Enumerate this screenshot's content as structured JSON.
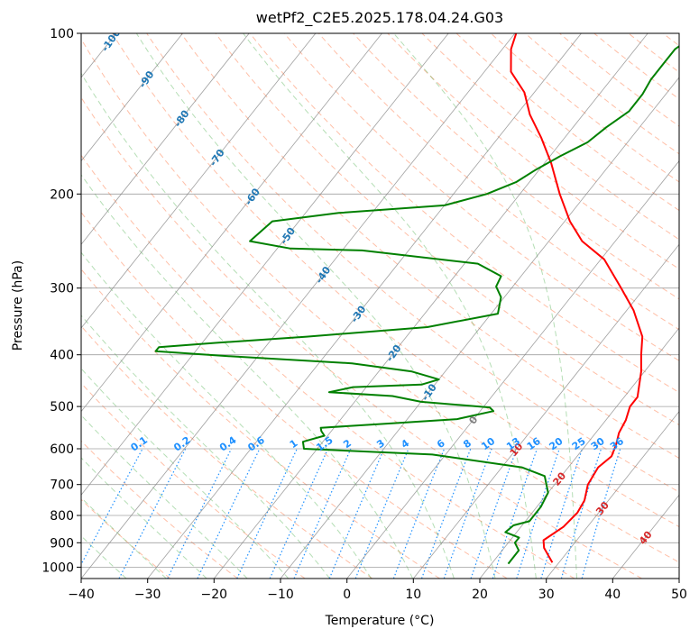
{
  "chart_data": {
    "type": "line",
    "title": "wetPf2_C2E5.2025.178.04.24.G03",
    "xlabel": "Temperature (°C)",
    "ylabel": "Pressure (hPa)",
    "xlim": [
      -40,
      50
    ],
    "ylim": [
      1050,
      100
    ],
    "y_scale": "log",
    "grid": true,
    "x_ticks": [
      "−40",
      "−30",
      "−20",
      "−10",
      "0",
      "10",
      "20",
      "30",
      "40",
      "50"
    ],
    "y_ticks": [
      "100",
      "200",
      "300",
      "400",
      "500",
      "600",
      "700",
      "800",
      "900",
      "1000"
    ],
    "isotherm_labels": [
      "-100",
      "-90",
      "-80",
      "-70",
      "-60",
      "-50",
      "-40",
      "-30",
      "-20",
      "-10",
      "0",
      "10",
      "20",
      "30",
      "40"
    ],
    "mixing_ratio_labels": [
      "0.1",
      "0.2",
      "0.4",
      "0.6",
      "1",
      "1.5",
      "2",
      "3",
      "4",
      "6",
      "8",
      "10",
      "13",
      "16",
      "20",
      "25",
      "30",
      "36"
    ],
    "colors": {
      "temperature": "#ff0000",
      "dewpoint": "#008000",
      "isotherm_text_cold": "#1f77b4",
      "isotherm_text_zero": "#808080",
      "isotherm_text_warm": "#d62728",
      "mixing_ratio": "#1e90ff",
      "dry_adiabat": "#ff7f50",
      "moist_adiabat": "#2ca02c",
      "isotherm_line": "#808080"
    },
    "series": [
      {
        "name": "Temperature",
        "points": [
          [
            29.0,
            980
          ],
          [
            26.0,
            920
          ],
          [
            25.0,
            890
          ],
          [
            26.4,
            840
          ],
          [
            26.8,
            790
          ],
          [
            26.4,
            750
          ],
          [
            25.0,
            700
          ],
          [
            24.5,
            650
          ],
          [
            25.2,
            620
          ],
          [
            24.5,
            590
          ],
          [
            23.5,
            560
          ],
          [
            23.0,
            530
          ],
          [
            22.0,
            500
          ],
          [
            22.0,
            480
          ],
          [
            19.5,
            430
          ],
          [
            17.5,
            400
          ],
          [
            15.5,
            370
          ],
          [
            11.0,
            330
          ],
          [
            6.5,
            300
          ],
          [
            0.5,
            265
          ],
          [
            -5.0,
            245
          ],
          [
            -9.2,
            225
          ],
          [
            -14.0,
            200
          ],
          [
            -19.0,
            175
          ],
          [
            -23.5,
            157
          ],
          [
            -28.0,
            142
          ],
          [
            -31.5,
            129
          ],
          [
            -36.0,
            118
          ],
          [
            -38.7,
            107
          ],
          [
            -39.8,
            100
          ]
        ]
      },
      {
        "name": "Dewpoint",
        "points": [
          [
            22.5,
            985
          ],
          [
            22.5,
            930
          ],
          [
            21.0,
            900
          ],
          [
            21.0,
            880
          ],
          [
            18.3,
            860
          ],
          [
            18.7,
            835
          ],
          [
            20.6,
            820
          ],
          [
            20.6,
            770
          ],
          [
            20.0,
            725
          ],
          [
            17.5,
            675
          ],
          [
            13.0,
            650
          ],
          [
            -2.0,
            615
          ],
          [
            -22.0,
            600
          ],
          [
            -23.0,
            582
          ],
          [
            -20.5,
            567
          ],
          [
            -21.5,
            556
          ],
          [
            -22.0,
            548
          ],
          [
            -12.0,
            538
          ],
          [
            -2.5,
            528
          ],
          [
            2.0,
            510
          ],
          [
            1.0,
            502
          ],
          [
            -10.0,
            490
          ],
          [
            -15.0,
            478
          ],
          [
            -25.0,
            470
          ],
          [
            -22.0,
            460
          ],
          [
            -12.0,
            455
          ],
          [
            -10.0,
            445
          ],
          [
            -15.0,
            430
          ],
          [
            -25.0,
            415
          ],
          [
            -45.0,
            402
          ],
          [
            -56.0,
            394
          ],
          [
            -56.0,
            387
          ],
          [
            -48.0,
            380
          ],
          [
            -35.0,
            370
          ],
          [
            -18.0,
            355
          ],
          [
            -9.0,
            335
          ],
          [
            -10.5,
            312
          ],
          [
            -12.5,
            298
          ],
          [
            -13.0,
            285
          ],
          [
            -18.0,
            270
          ],
          [
            -37.0,
            255
          ],
          [
            -48.0,
            253
          ],
          [
            -55.0,
            245
          ],
          [
            -54.0,
            225
          ],
          [
            -45.0,
            217
          ],
          [
            -30.0,
            210
          ],
          [
            -25.0,
            200
          ],
          [
            -22.0,
            190
          ],
          [
            -20.5,
            180
          ],
          [
            -18.5,
            170
          ],
          [
            -16.0,
            160
          ],
          [
            -15.0,
            150
          ],
          [
            -13.5,
            140
          ],
          [
            -13.5,
            130
          ],
          [
            -14.0,
            122
          ],
          [
            -14.0,
            113
          ],
          [
            -14.0,
            107
          ],
          [
            -12.5,
            100
          ]
        ]
      }
    ]
  }
}
